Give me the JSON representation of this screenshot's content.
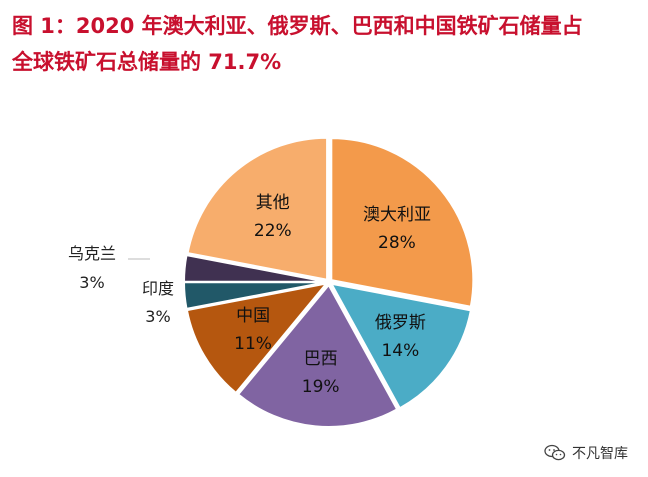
{
  "title": {
    "line1": "图 1：2020 年澳大利亚、俄罗斯、巴西和中国铁矿石储量占",
    "line2": "全球铁矿石总储量的 71.7%"
  },
  "watermark": {
    "text": "不凡智库",
    "icon": "wechat-icon"
  },
  "chart_data": {
    "type": "pie",
    "title": "图 1：2020 年澳大利亚、俄罗斯、巴西和中国铁矿石储量占全球铁矿石总储量的 71.7%",
    "slices": [
      {
        "label": "澳大利亚",
        "value": 28,
        "value_label": "28%",
        "color": "#f39a4b",
        "label_position": "inside"
      },
      {
        "label": "俄罗斯",
        "value": 14,
        "value_label": "14%",
        "color": "#4bacc6",
        "label_position": "inside"
      },
      {
        "label": "巴西",
        "value": 19,
        "value_label": "19%",
        "color": "#8064a2",
        "label_position": "inside"
      },
      {
        "label": "中国",
        "value": 11,
        "value_label": "11%",
        "color": "#b5570f",
        "label_position": "inside"
      },
      {
        "label": "印度",
        "value": 3,
        "value_label": "3%",
        "color": "#215868",
        "label_position": "outside"
      },
      {
        "label": "乌克兰",
        "value": 3,
        "value_label": "3%",
        "color": "#403151",
        "label_position": "outside"
      },
      {
        "label": "其他",
        "value": 22,
        "value_label": "22%",
        "color": "#f7ad6c",
        "label_position": "inside"
      }
    ]
  }
}
